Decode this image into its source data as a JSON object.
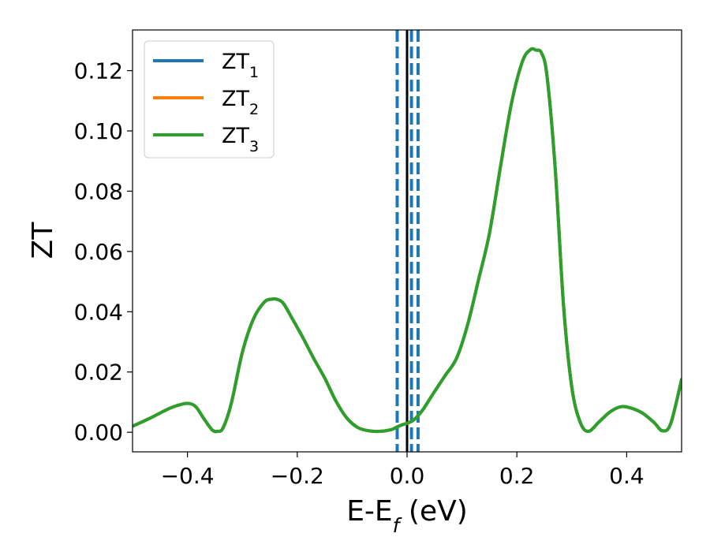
{
  "chart_data": {
    "type": "line",
    "xlabel_main": "E-E",
    "xlabel_sub": "f",
    "xlabel_unit": " (eV)",
    "ylabel": "ZT",
    "xlim": [
      -0.5,
      0.5
    ],
    "ylim": [
      -0.0065,
      0.1335
    ],
    "xticks": [
      -0.4,
      -0.2,
      0.0,
      0.2,
      0.4
    ],
    "xtick_labels": [
      "−0.4",
      "−0.2",
      "0.0",
      "0.2",
      "0.4"
    ],
    "yticks": [
      0.0,
      0.02,
      0.04,
      0.06,
      0.08,
      0.1,
      0.12
    ],
    "ytick_labels": [
      "0.00",
      "0.02",
      "0.04",
      "0.06",
      "0.08",
      "0.10",
      "0.12"
    ],
    "legend_position": "top-left",
    "grid": false,
    "series": [
      {
        "name_main": "ZT",
        "name_sub": "1",
        "color": "#1f77b4"
      },
      {
        "name_main": "ZT",
        "name_sub": "2",
        "color": "#ff7f0e"
      },
      {
        "name_main": "ZT",
        "name_sub": "3",
        "color": "#2ca02c"
      }
    ],
    "curve": {
      "x": [
        -0.5,
        -0.47,
        -0.44,
        -0.42,
        -0.4,
        -0.385,
        -0.37,
        -0.355,
        -0.345,
        -0.335,
        -0.32,
        -0.3,
        -0.28,
        -0.26,
        -0.245,
        -0.235,
        -0.225,
        -0.21,
        -0.19,
        -0.17,
        -0.15,
        -0.13,
        -0.11,
        -0.09,
        -0.07,
        -0.05,
        -0.03,
        -0.02,
        -0.01,
        0.0,
        0.01,
        0.02,
        0.03,
        0.05,
        0.07,
        0.09,
        0.11,
        0.13,
        0.15,
        0.17,
        0.19,
        0.21,
        0.225,
        0.235,
        0.245,
        0.255,
        0.27,
        0.285,
        0.3,
        0.315,
        0.33,
        0.35,
        0.37,
        0.39,
        0.41,
        0.43,
        0.45,
        0.465,
        0.48,
        0.5
      ],
      "y": [
        0.002,
        0.0045,
        0.0073,
        0.0088,
        0.0096,
        0.0085,
        0.0045,
        0.0008,
        0.0003,
        0.0015,
        0.0097,
        0.0265,
        0.0375,
        0.0432,
        0.0442,
        0.044,
        0.0427,
        0.038,
        0.0315,
        0.0245,
        0.018,
        0.0105,
        0.0048,
        0.0016,
        0.0005,
        0.0003,
        0.0008,
        0.0016,
        0.0024,
        0.003,
        0.0038,
        0.0055,
        0.0078,
        0.0135,
        0.019,
        0.0245,
        0.0355,
        0.0505,
        0.066,
        0.088,
        0.109,
        0.123,
        0.127,
        0.1268,
        0.1258,
        0.118,
        0.087,
        0.042,
        0.015,
        0.0035,
        0.0003,
        0.0035,
        0.0068,
        0.0085,
        0.0079,
        0.0062,
        0.0032,
        0.0005,
        0.0028,
        0.0175
      ]
    },
    "vlines": [
      {
        "x": -0.018,
        "style": "dashed",
        "color": "#1f77b4"
      },
      {
        "x": 0.0,
        "style": "solid",
        "color": "#000000"
      },
      {
        "x": 0.008,
        "style": "dashed",
        "color": "#1f77b4"
      },
      {
        "x": 0.02,
        "style": "dashed",
        "color": "#1f77b4"
      }
    ]
  }
}
